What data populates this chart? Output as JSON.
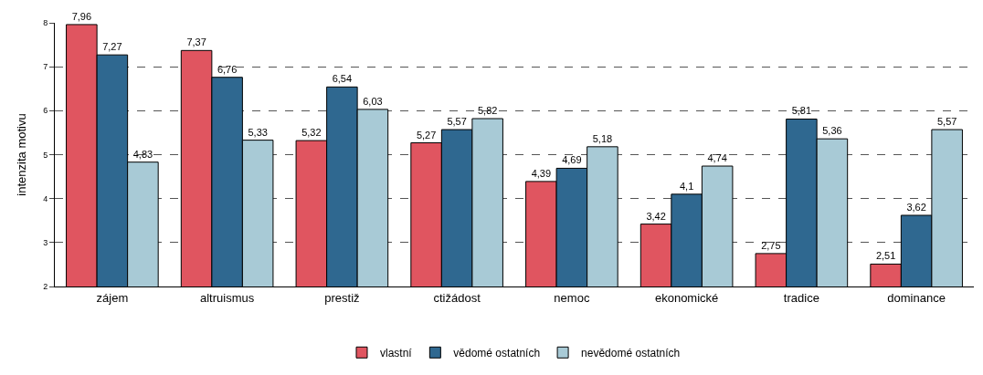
{
  "chart_data": {
    "type": "bar",
    "ylabel": "intenzita motivu",
    "categories": [
      "zájem",
      "altruismus",
      "prestiž",
      "ctižádost",
      "nemoc",
      "ekonomické",
      "tradice",
      "dominance"
    ],
    "series": [
      {
        "name": "vlastní",
        "color": "#e05560",
        "values": [
          7.96,
          7.37,
          5.32,
          5.27,
          4.39,
          3.42,
          2.75,
          2.51
        ],
        "value_labels": [
          "7,96",
          "7,37",
          "5,32",
          "5,27",
          "4,39",
          "3,42",
          "2,75",
          "2,51"
        ]
      },
      {
        "name": "vědomé ostatních",
        "color": "#2f6890",
        "values": [
          7.27,
          6.76,
          6.54,
          5.57,
          4.69,
          4.1,
          5.81,
          3.62
        ],
        "value_labels": [
          "7,27",
          "6,76",
          "6,54",
          "5,57",
          "4,69",
          "4,1",
          "5,81",
          "3,62"
        ]
      },
      {
        "name": "nevědomé ostatních",
        "color": "#a8cad6",
        "values": [
          4.83,
          5.33,
          6.03,
          5.82,
          5.18,
          4.74,
          5.36,
          5.57
        ],
        "value_labels": [
          "4,83",
          "5,33",
          "6,03",
          "5,82",
          "5,18",
          "4,74",
          "5,36",
          "5,57"
        ]
      }
    ],
    "ylim": [
      2,
      8
    ],
    "yticks": [
      2,
      3,
      4,
      5,
      6,
      7,
      8
    ],
    "grid": "y",
    "legend": "bottom"
  }
}
